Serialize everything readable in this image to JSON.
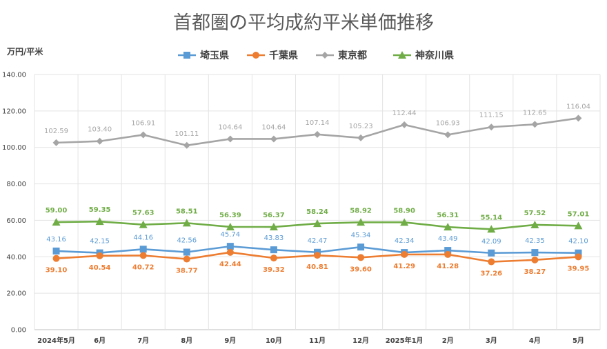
{
  "chart_data": {
    "type": "line",
    "title": "首都圏の平均成約平米単価推移",
    "ylabel": "万円/平米",
    "xlabel": "",
    "ylim": [
      0,
      140
    ],
    "yticks": [
      "0.00",
      "20.00",
      "40.00",
      "60.00",
      "80.00",
      "100.00",
      "120.00",
      "140.00"
    ],
    "grid": true,
    "legend_position": "top",
    "categories": [
      "2024年5月",
      "6月",
      "7月",
      "8月",
      "9月",
      "10月",
      "11月",
      "12月",
      "2025年1月",
      "2月",
      "3月",
      "4月",
      "5月"
    ],
    "series": [
      {
        "name": "埼玉県",
        "color": "#5b9bd5",
        "marker": "square",
        "label_position": "above",
        "values": [
          43.16,
          42.15,
          44.16,
          42.56,
          45.74,
          43.83,
          42.47,
          45.34,
          42.34,
          43.49,
          42.09,
          42.35,
          42.1
        ],
        "labels": [
          "43.16",
          "42.15",
          "44.16",
          "42.56",
          "45.74",
          "43.83",
          "42.47",
          "45.34",
          "42.34",
          "43.49",
          "42.09",
          "42.35",
          "42.10"
        ]
      },
      {
        "name": "千葉県",
        "color": "#ed7d31",
        "marker": "circle",
        "label_position": "below",
        "values": [
          39.1,
          40.54,
          40.72,
          38.77,
          42.44,
          39.32,
          40.81,
          39.6,
          41.29,
          41.28,
          37.26,
          38.27,
          39.95
        ],
        "labels": [
          "39.10",
          "40.54",
          "40.72",
          "38.77",
          "42.44",
          "39.32",
          "40.81",
          "39.60",
          "41.29",
          "41.28",
          "37.26",
          "38.27",
          "39.95"
        ]
      },
      {
        "name": "東京都",
        "color": "#a5a5a5",
        "marker": "diamond",
        "label_position": "above",
        "values": [
          102.59,
          103.4,
          106.91,
          101.11,
          104.64,
          104.64,
          107.14,
          105.23,
          112.44,
          106.93,
          111.15,
          112.65,
          116.04
        ],
        "labels": [
          "102.59",
          "103.40",
          "106.91",
          "101.11",
          "104.64",
          "104.64",
          "107.14",
          "105.23",
          "112.44",
          "106.93",
          "111.15",
          "112.65",
          "116.04"
        ]
      },
      {
        "name": "神奈川県",
        "color": "#70ad47",
        "marker": "triangle",
        "label_position": "above",
        "values": [
          59.0,
          59.35,
          57.63,
          58.51,
          56.39,
          56.37,
          58.24,
          58.92,
          58.9,
          56.31,
          55.14,
          57.52,
          57.01
        ],
        "labels": [
          "59.00",
          "59.35",
          "57.63",
          "58.51",
          "56.39",
          "56.37",
          "58.24",
          "58.92",
          "58.90",
          "56.31",
          "55.14",
          "57.52",
          "57.01"
        ]
      }
    ]
  }
}
